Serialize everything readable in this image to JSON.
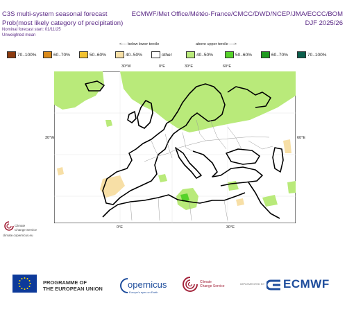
{
  "header": {
    "title_left": "C3S multi-system seasonal forecast",
    "title_right": "ECMWF/Met Office/Météo-France/CMCC/DWD/NCEP/JMA/ECCC/BOM",
    "subtitle_left": "Prob(most likely category of precipitation)",
    "subtitle_right": "DJF 2025/26",
    "start_line": "Nominal forecast start: 01/11/25",
    "mean_line": "Unweighted mean"
  },
  "legend": {
    "below_label": "<---- below lower tercile",
    "above_label": "above upper tercile ---->",
    "items": [
      {
        "label": "70..100%",
        "color": "#8b3a0f"
      },
      {
        "label": "60..70%",
        "color": "#d98a1c"
      },
      {
        "label": "50..60%",
        "color": "#f2c231"
      },
      {
        "label": "40..50%",
        "color": "#f7dfa6"
      },
      {
        "label": "other",
        "color": "#ffffff"
      },
      {
        "label": "40..50%",
        "color": "#b9ea7a"
      },
      {
        "label": "50..60%",
        "color": "#56d22a"
      },
      {
        "label": "60..70%",
        "color": "#1f9a1f"
      },
      {
        "label": "70..100%",
        "color": "#0b5e4c"
      }
    ]
  },
  "map": {
    "top_ticks": [
      "30°W",
      "0°E",
      "30°E",
      "60°E"
    ],
    "bottom_ticks": [
      "0°E",
      "30°E"
    ],
    "left_tick": "30°W",
    "right_tick": "60°E",
    "land_color": "#ffffff",
    "positive_color": "#b9ea7a",
    "negative_color": "#f7dfa6"
  },
  "side_logo": {
    "line1": "Climate",
    "line2": "Change Service",
    "url": "climate.copernicus.eu"
  },
  "footer": {
    "programme_line1": "PROGRAMME OF",
    "programme_line2": "THE EUROPEAN UNION",
    "copernicus": "opernicus",
    "copernicus_sub": "Europe's eyes on Earth",
    "cs_line1": "Climate",
    "cs_line2": "Change Service",
    "implemented_by": "IMPLEMENTED BY",
    "ecmwf": "ECMWF"
  }
}
